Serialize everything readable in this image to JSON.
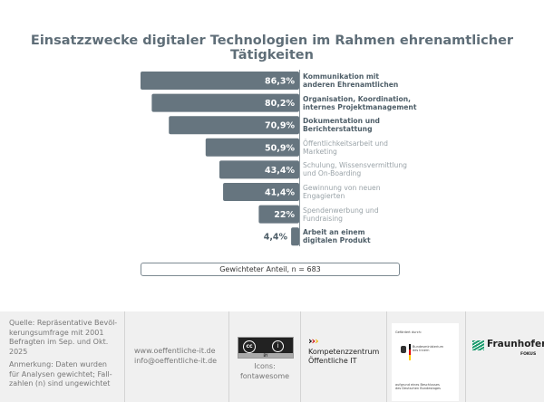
{
  "chart_data": {
    "type": "bar",
    "orientation": "horizontal",
    "title": "Einsatzzwecke digitaler Technologien im Rahmen ehrenamtlicher Tätigkeiten",
    "categories": [
      "Kommunikation mit anderen Ehrenamtlichen",
      "Organisation, Koordination, internes Projektmanagement",
      "Dokumentation und Berichterstattung",
      "Öffentlichkeitsarbeit und Marketing",
      "Schulung, Wissensvermittlung und On-Boarding",
      "Gewinnung von neuen Engagierten",
      "Spendenwerbung und Fundraising",
      "Arbeit an einem digitalen Produkt"
    ],
    "label_lines": [
      [
        "Kommunikation mit",
        "anderen Ehrenamtlichen"
      ],
      [
        "Organisation, Koordination,",
        "internes Projektmanagement"
      ],
      [
        "Dokumentation und",
        "Berichterstattung"
      ],
      [
        "Öffentlichkeitsarbeit und",
        "Marketing"
      ],
      [
        "Schulung, Wissensvermittlung",
        "und On-Boarding"
      ],
      [
        "Gewinnung von neuen",
        "Engagierten"
      ],
      [
        "Spendenwerbung und",
        "Fundraising"
      ],
      [
        "Arbeit an einem",
        "digitalen Produkt"
      ]
    ],
    "bold": [
      true,
      true,
      true,
      false,
      false,
      false,
      false,
      true
    ],
    "values": [
      86.3,
      80.2,
      70.9,
      50.9,
      43.4,
      41.4,
      22,
      4.4
    ],
    "value_labels": [
      "86,3%",
      "80,2%",
      "70,9%",
      "50,9%",
      "43,4%",
      "41,4%",
      "22%",
      "4,4%"
    ],
    "unit": "%",
    "xlim": [
      0,
      100
    ],
    "note": "Gewichteter Anteil, n = 683",
    "colors": {
      "bar": "#66757f",
      "value_text": "#ffffff",
      "value_text_outside": "#4e5e68"
    }
  },
  "footer": {
    "source_lines": [
      "Quelle: Repräsentative Bevöl-",
      "kerungsumfrage mit 2001",
      "Befragten im Sep. und Okt.",
      "2025"
    ],
    "note_lines": [
      "Anmerkung: Daten wurden",
      "für Analysen gewichtet; Fall-",
      "zahlen (n) sind ungewichtet"
    ],
    "website": "www.oeffentliche-it.de",
    "email": "info@oeffentliche-it.de",
    "cc_label": "BY",
    "icons_lines": [
      "Icons:",
      "fontawesome"
    ],
    "kompetenz_lines": [
      "Kompetenzzentrum",
      "Öffentliche IT"
    ],
    "bmi_top": "Gefördert durch:",
    "bmi_name": [
      "Bundesministerium",
      "des Innern"
    ],
    "bmi_bottom": [
      "aufgrund eines Beschlusses",
      "des Deutschen Bundestages"
    ],
    "fraunhofer": "Fraunhofer",
    "fokus": "FOKUS"
  }
}
